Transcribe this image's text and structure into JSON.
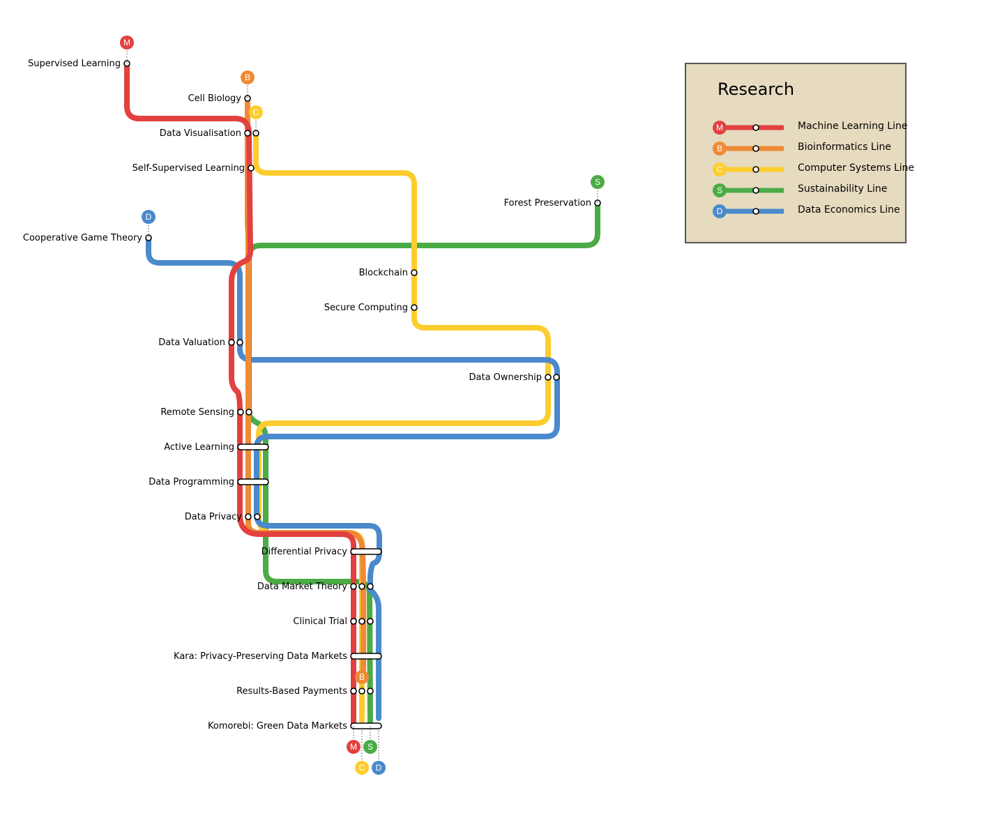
{
  "colors": {
    "M": "#e2413f",
    "B": "#ef8a36",
    "C": "#fdcd2f",
    "S": "#4bab46",
    "D": "#4a89cb"
  },
  "legend": {
    "title": "Research",
    "items": [
      {
        "code": "M",
        "label": "Machine Learning Line"
      },
      {
        "code": "B",
        "label": "Bioinformatics Line"
      },
      {
        "code": "C",
        "label": "Computer Systems Line"
      },
      {
        "code": "S",
        "label": "Sustainability Line"
      },
      {
        "code": "D",
        "label": "Data Economics Line"
      }
    ]
  },
  "stations": [
    "Supervised Learning",
    "Cell Biology",
    "Data Visualisation",
    "Self-Supervised Learning",
    "Forest Preservation",
    "Cooperative Game Theory",
    "Blockchain",
    "Secure Computing",
    "Data Valuation",
    "Data Ownership",
    "Remote Sensing",
    "Active Learning",
    "Data Programming",
    "Data Privacy",
    "Differential Privacy",
    "Data Market Theory",
    "Clinical Trial",
    "Kara: Privacy-Preserving Data Markets",
    "Results-Based Payments",
    "Komorebi: Green Data Markets"
  ],
  "lines": [
    {
      "code": "M",
      "stops": [
        "Supervised Learning",
        "Data Visualisation",
        "Self-Supervised Learning",
        "Data Valuation",
        "Remote Sensing",
        "Active Learning",
        "Data Programming",
        "Data Privacy",
        "Differential Privacy",
        "Data Market Theory",
        "Clinical Trial",
        "Kara: Privacy-Preserving Data Markets",
        "Results-Based Payments",
        "Komorebi: Green Data Markets"
      ]
    },
    {
      "code": "B",
      "stops": [
        "Cell Biology",
        "Data Visualisation",
        "Active Learning",
        "Data Programming",
        "Data Privacy",
        "Differential Privacy",
        "Data Market Theory",
        "Clinical Trial",
        "Kara: Privacy-Preserving Data Markets",
        "Results-Based Payments"
      ]
    },
    {
      "code": "C",
      "stops": [
        "Data Visualisation",
        "Blockchain",
        "Secure Computing",
        "Data Ownership",
        "Active Learning",
        "Data Programming",
        "Differential Privacy",
        "Data Market Theory",
        "Clinical Trial",
        "Kara: Privacy-Preserving Data Markets",
        "Results-Based Payments",
        "Komorebi: Green Data Markets"
      ]
    },
    {
      "code": "S",
      "stops": [
        "Forest Preservation",
        "Remote Sensing",
        "Active Learning",
        "Data Programming",
        "Differential Privacy",
        "Data Market Theory",
        "Clinical Trial",
        "Kara: Privacy-Preserving Data Markets",
        "Results-Based Payments",
        "Komorebi: Green Data Markets"
      ]
    },
    {
      "code": "D",
      "stops": [
        "Cooperative Game Theory",
        "Data Valuation",
        "Data Ownership",
        "Active Learning",
        "Data Programming",
        "Data Privacy",
        "Differential Privacy",
        "Data Market Theory",
        "Clinical Trial",
        "Kara: Privacy-Preserving Data Markets",
        "Results-Based Payments",
        "Komorebi: Green Data Markets"
      ]
    }
  ],
  "terminals": [
    "M",
    "B",
    "C",
    "S",
    "D",
    "B",
    "M",
    "S",
    "C",
    "D"
  ]
}
